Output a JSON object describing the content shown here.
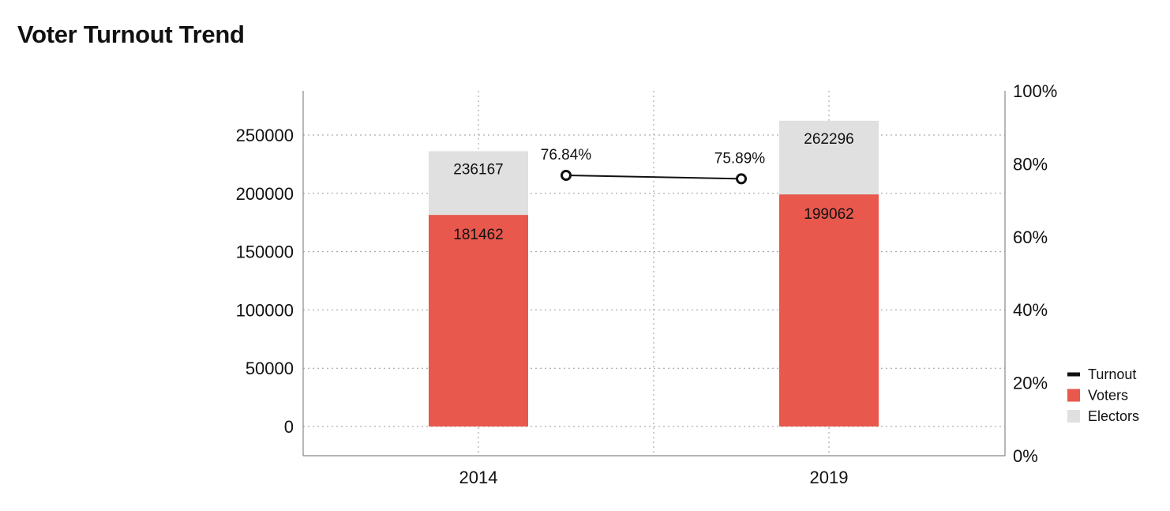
{
  "title": "Voter Turnout Trend",
  "chart_data": {
    "type": "bar",
    "categories": [
      "2014",
      "2019"
    ],
    "series": [
      {
        "name": "Electors",
        "values": [
          236167,
          262296
        ],
        "color": "#e0e0e0"
      },
      {
        "name": "Voters",
        "values": [
          181462,
          199062
        ],
        "color": "#e8584d"
      },
      {
        "name": "Turnout",
        "values": [
          76.84,
          75.89
        ],
        "color": "#111111"
      }
    ],
    "turnout_labels": [
      "76.84%",
      "75.89%"
    ],
    "y_left": {
      "ticks": [
        0,
        50000,
        100000,
        150000,
        200000,
        250000
      ]
    },
    "y_right": {
      "ticks": [
        "0%",
        "20%",
        "40%",
        "60%",
        "80%",
        "100%"
      ],
      "range": [
        0,
        100
      ]
    },
    "grid": true,
    "legend_position": "right",
    "legend": [
      "Turnout",
      "Voters",
      "Electors"
    ]
  }
}
